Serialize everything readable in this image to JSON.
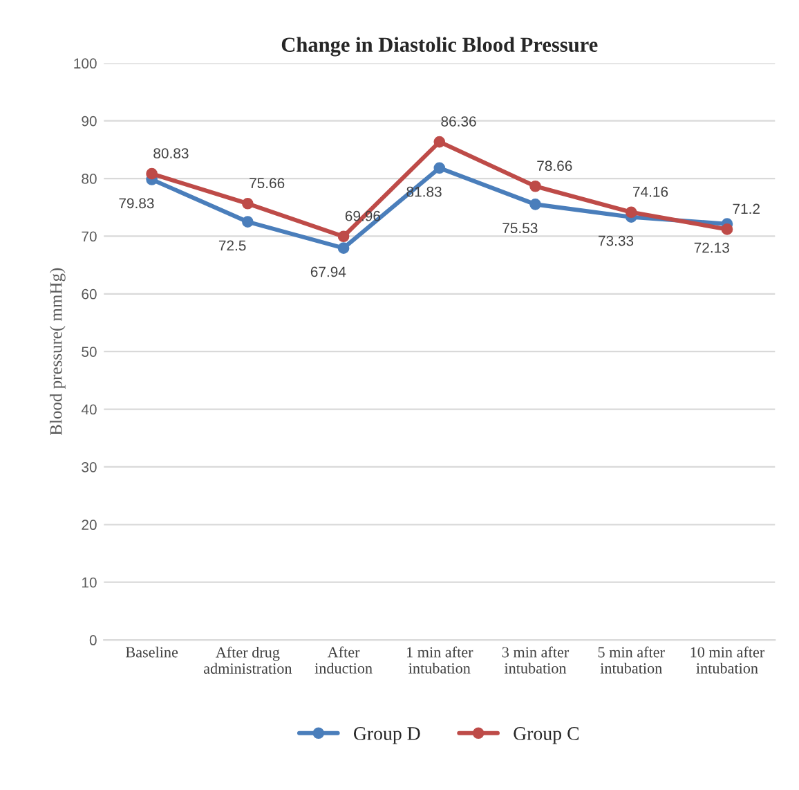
{
  "chart_data": {
    "type": "line",
    "title": "Change in Diastolic Blood Pressure",
    "ylabel": "Blood pressure( mmHg)",
    "categories": [
      "Baseline",
      "After drug\nadministration",
      "After\ninduction",
      "1 min after\nintubation",
      "3 min after\nintubation",
      "5 min after\nintubation",
      "10 min after\nintubation"
    ],
    "series": [
      {
        "name": "Group D",
        "color": "#4a7ebb",
        "values": [
          79.83,
          72.5,
          67.94,
          81.83,
          75.53,
          73.33,
          72.13
        ]
      },
      {
        "name": "Group C",
        "color": "#be4b48",
        "values": [
          80.83,
          75.66,
          69.96,
          86.36,
          78.66,
          74.16,
          71.2
        ]
      }
    ],
    "ylim": [
      0,
      100
    ],
    "yticks": [
      0,
      10,
      20,
      30,
      40,
      50,
      60,
      70,
      80,
      90,
      100
    ],
    "grid": "y",
    "legend": "bottom",
    "marker": "circle",
    "data_labels": true
  }
}
